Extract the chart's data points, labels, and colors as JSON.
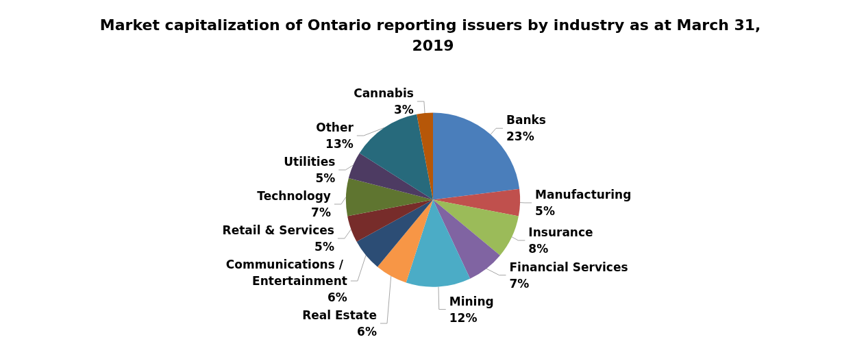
{
  "chart_data": {
    "type": "pie",
    "title": "Market capitalization of Ontario reporting issuers by industry as at March 31, 2019",
    "categories": [
      "Banks",
      "Manufacturing",
      "Insurance",
      "Financial Services",
      "Mining",
      "Real Estate",
      "Communications / Entertainment",
      "Retail & Services",
      "Technology",
      "Utilities",
      "Other",
      "Cannabis"
    ],
    "values": [
      23,
      5,
      8,
      7,
      12,
      6,
      6,
      5,
      7,
      5,
      13,
      3
    ],
    "value_labels": [
      "23%",
      "5%",
      "8%",
      "7%",
      "12%",
      "6%",
      "6%",
      "5%",
      "7%",
      "5%",
      "13%",
      "3%"
    ],
    "colors": [
      "#4a7ebb",
      "#c0504d",
      "#9bbb59",
      "#8064a2",
      "#4bacc6",
      "#f79646",
      "#2c4d75",
      "#772c2a",
      "#5f7530",
      "#4d3b62",
      "#276a7c",
      "#b65708"
    ],
    "legend": false
  }
}
